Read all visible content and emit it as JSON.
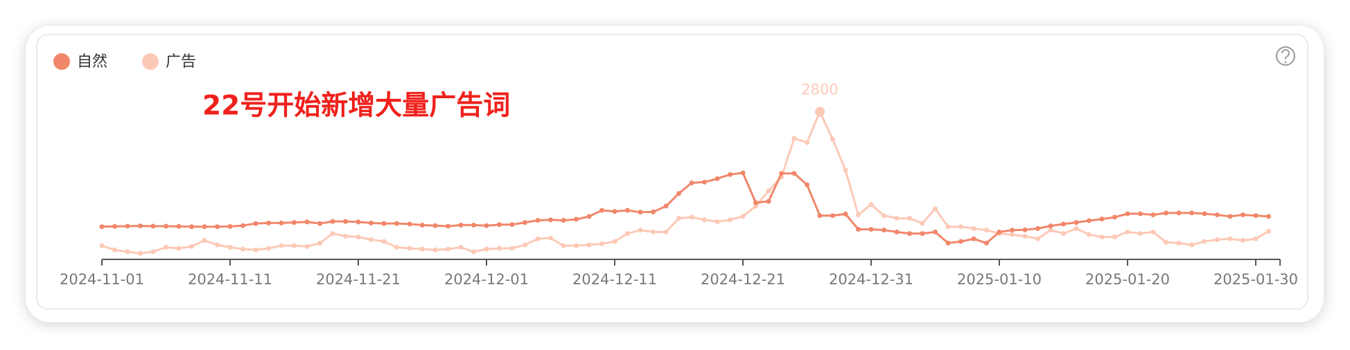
{
  "chart_data": {
    "type": "line",
    "annotation": "22号开始新增大量广告词",
    "categories": [
      "2024-11-01",
      null,
      null,
      null,
      null,
      null,
      null,
      null,
      null,
      null,
      "2024-11-11",
      null,
      null,
      null,
      null,
      null,
      null,
      null,
      null,
      null,
      "2024-11-21",
      null,
      null,
      null,
      null,
      null,
      null,
      null,
      null,
      null,
      "2024-12-01",
      null,
      null,
      null,
      null,
      null,
      null,
      null,
      null,
      null,
      "2024-12-11",
      null,
      null,
      null,
      null,
      null,
      null,
      null,
      null,
      null,
      "2024-12-21",
      null,
      null,
      null,
      null,
      null,
      null,
      null,
      null,
      null,
      "2024-12-31",
      null,
      null,
      null,
      null,
      null,
      null,
      null,
      null,
      null,
      "2025-01-10",
      null,
      null,
      null,
      null,
      null,
      null,
      null,
      null,
      null,
      "2025-01-20",
      null,
      null,
      null,
      null,
      null,
      null,
      null,
      null,
      null,
      "2025-01-30",
      null
    ],
    "ylim": [
      0,
      3200
    ],
    "legend": "top-left",
    "series": [
      {
        "name": "自然",
        "color": "#f0876a",
        "values": [
          620,
          625,
          630,
          635,
          630,
          630,
          625,
          620,
          620,
          620,
          625,
          640,
          680,
          690,
          690,
          700,
          710,
          680,
          720,
          720,
          710,
          690,
          680,
          680,
          670,
          650,
          640,
          630,
          650,
          650,
          640,
          660,
          660,
          700,
          740,
          750,
          740,
          760,
          815,
          930,
          910,
          930,
          895,
          900,
          1010,
          1250,
          1450,
          1465,
          1530,
          1610,
          1640,
          1075,
          1100,
          1630,
          1630,
          1415,
          830,
          830,
          860,
          570,
          570,
          555,
          520,
          490,
          490,
          520,
          310,
          340,
          390,
          310,
          520,
          555,
          560,
          585,
          635,
          670,
          700,
          735,
          765,
          800,
          865,
          865,
          845,
          880,
          880,
          880,
          865,
          845,
          815,
          845,
          830,
          815
        ]
      },
      {
        "name": "广告",
        "color": "#fcc9b6",
        "values": [
          260,
          180,
          145,
          115,
          145,
          230,
          210,
          245,
          360,
          275,
          230,
          195,
          180,
          210,
          260,
          260,
          245,
          310,
          490,
          440,
          425,
          375,
          340,
          230,
          210,
          195,
          180,
          195,
          230,
          145,
          195,
          210,
          210,
          275,
          390,
          405,
          260,
          260,
          275,
          295,
          340,
          490,
          555,
          520,
          520,
          780,
          800,
          750,
          715,
          750,
          815,
          1010,
          1300,
          1560,
          2295,
          2215,
          2800,
          2280,
          1695,
          845,
          1040,
          830,
          780,
          780,
          685,
          960,
          620,
          620,
          585,
          555,
          490,
          470,
          440,
          390,
          555,
          490,
          585,
          470,
          425,
          425,
          520,
          490,
          520,
          325,
          310,
          275,
          340,
          375,
          390,
          360,
          390,
          535
        ]
      }
    ]
  }
}
